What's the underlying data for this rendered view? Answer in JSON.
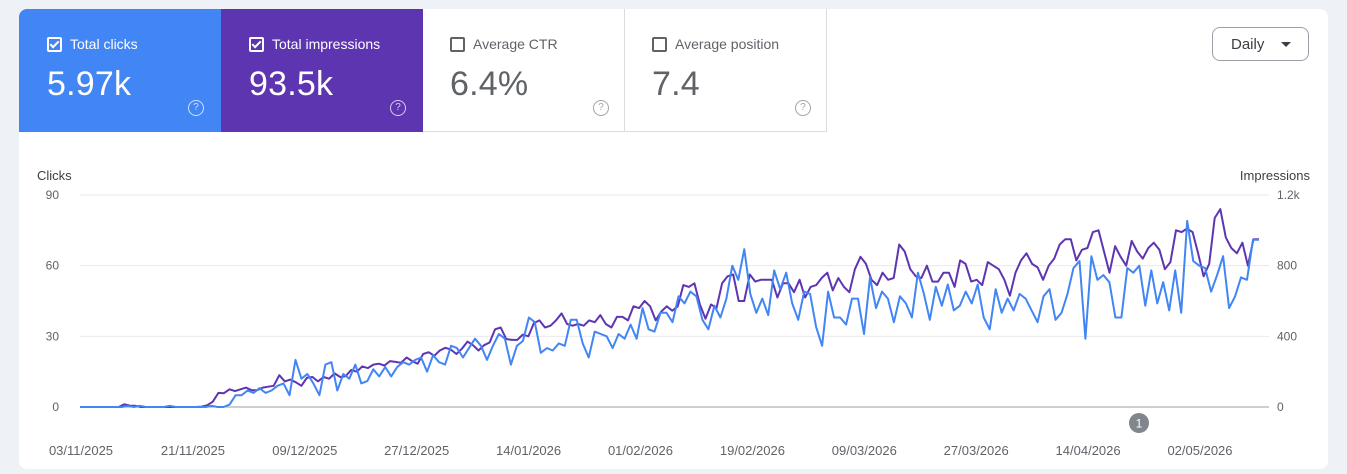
{
  "metrics": [
    {
      "label": "Total clicks",
      "value": "5.97k",
      "checked": true
    },
    {
      "label": "Total impressions",
      "value": "93.5k",
      "checked": true
    },
    {
      "label": "Average CTR",
      "value": "6.4%",
      "checked": false
    },
    {
      "label": "Average position",
      "value": "7.4",
      "checked": false
    }
  ],
  "help_glyph": "?",
  "dropdown": {
    "label": "Daily"
  },
  "annotation_marker": "1",
  "colors": {
    "clicks": "#4285f4",
    "impressions": "#5e35b1",
    "background": "#eef1f6"
  },
  "chart_data": {
    "type": "line",
    "left_axis_label": "Clicks",
    "right_axis_label": "Impressions",
    "left_ylim": [
      0,
      90
    ],
    "right_ylim": [
      0,
      1200
    ],
    "left_ticks": [
      "90",
      "60",
      "30",
      "0"
    ],
    "right_ticks": [
      "1.2k",
      "800",
      "400",
      "0"
    ],
    "x_tick_labels": [
      "03/11/2025",
      "21/11/2025",
      "09/12/2025",
      "27/12/2025",
      "14/01/2026",
      "01/02/2026",
      "19/02/2026",
      "09/03/2026",
      "27/03/2026",
      "14/04/2026",
      "02/05/2026"
    ],
    "grid": true,
    "series": [
      {
        "name": "Clicks",
        "axis": "left",
        "values": [
          0,
          0,
          0,
          0,
          0,
          0,
          0,
          0,
          0.5,
          0,
          0.5,
          0,
          0,
          0,
          0,
          0.5,
          0,
          0,
          0,
          0,
          0,
          0,
          0.5,
          0,
          0,
          1,
          5,
          5,
          7,
          6,
          8,
          6,
          7,
          9,
          10,
          5,
          20,
          12,
          14,
          10,
          5,
          18,
          19,
          7,
          14,
          12,
          18,
          10,
          11,
          16,
          13,
          17,
          13,
          17,
          19,
          18,
          20,
          21,
          15,
          22,
          19,
          18,
          26,
          25,
          21,
          25,
          29,
          26,
          20,
          26,
          31,
          29,
          18,
          26,
          28,
          38,
          36,
          23,
          25,
          24,
          27,
          26,
          37,
          37,
          27,
          21,
          32,
          31,
          30,
          25,
          31,
          29,
          35,
          29,
          42,
          33,
          32,
          40,
          40,
          36,
          47,
          44,
          49,
          47,
          37,
          33,
          43,
          38,
          46,
          60,
          54,
          67,
          48,
          40,
          46,
          39,
          58,
          50,
          57,
          44,
          37,
          49,
          48,
          34,
          26,
          49,
          38,
          38,
          35,
          46,
          46,
          31,
          55,
          42,
          49,
          46,
          36,
          47,
          44,
          38,
          57,
          48,
          37,
          51,
          43,
          52,
          41,
          43,
          49,
          44,
          52,
          38,
          33,
          50,
          40,
          46,
          41,
          48,
          46,
          41,
          36,
          47,
          50,
          37,
          40,
          48,
          59,
          62,
          29,
          64,
          54,
          56,
          53,
          38,
          38,
          59,
          57,
          60,
          43,
          58,
          44,
          53,
          41,
          58,
          40,
          79,
          62,
          60,
          59,
          49,
          56,
          64,
          42,
          47,
          55,
          54,
          71
        ],
        "end_value": 71
      },
      {
        "name": "Impressions",
        "axis": "right",
        "values": [
          0,
          0,
          0,
          0,
          0,
          0,
          0,
          0,
          15,
          8,
          7,
          0,
          0,
          0,
          0,
          0,
          0,
          0,
          0,
          0,
          0,
          0,
          2,
          10,
          30,
          80,
          78,
          100,
          90,
          100,
          110,
          95,
          95,
          110,
          115,
          120,
          180,
          145,
          155,
          140,
          120,
          165,
          170,
          145,
          170,
          160,
          190,
          170,
          175,
          210,
          200,
          230,
          220,
          240,
          245,
          235,
          260,
          255,
          250,
          280,
          260,
          245,
          300,
          310,
          290,
          320,
          335,
          325,
          300,
          330,
          370,
          350,
          320,
          350,
          365,
          440,
          450,
          385,
          380,
          380,
          410,
          400,
          475,
          490,
          450,
          460,
          490,
          530,
          470,
          460,
          470,
          460,
          490,
          480,
          520,
          470,
          450,
          510,
          510,
          490,
          570,
          560,
          600,
          570,
          490,
          540,
          570,
          545,
          570,
          690,
          680,
          700,
          580,
          500,
          580,
          560,
          700,
          740,
          750,
          600,
          600,
          750,
          710,
          720,
          720,
          720,
          620,
          700,
          700,
          650,
          720,
          620,
          680,
          690,
          730,
          760,
          660,
          730,
          680,
          650,
          780,
          850,
          810,
          720,
          690,
          760,
          720,
          730,
          920,
          880,
          780,
          740,
          730,
          800,
          710,
          710,
          760,
          760,
          680,
          830,
          810,
          710,
          720,
          690,
          820,
          800,
          780,
          720,
          630,
          760,
          830,
          870,
          810,
          790,
          720,
          800,
          840,
          920,
          950,
          950,
          830,
          890,
          900,
          990,
          1000,
          880,
          760,
          910,
          850,
          800,
          940,
          880,
          840,
          900,
          930,
          890,
          780,
          820,
          1000,
          990,
          1010,
          990,
          870,
          740,
          810,
          1070,
          1120,
          960,
          900,
          870,
          930,
          800,
          950
        ],
        "end_value": 950
      }
    ]
  }
}
